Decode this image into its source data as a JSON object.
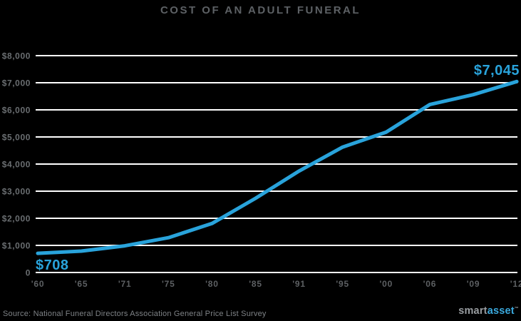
{
  "title": "COST OF AN ADULT FUNERAL",
  "source": "Source: National Funeral Directors Association General Price List Survey",
  "logo": {
    "smart": "smart",
    "asset": "asset",
    "tm": "™"
  },
  "colors": {
    "background": "#000000",
    "line": "#29a3db",
    "gridline": "#ffffff",
    "title_text": "#5d6165",
    "y_tick_text": "#6a6e71",
    "x_tick_text": "#5d6063",
    "source_text": "#7e8286",
    "logo_gray": "#999da1",
    "logo_blue": "#3aa9de"
  },
  "chart_data": {
    "type": "line",
    "title": "COST OF AN ADULT FUNERAL",
    "categories": [
      "'60",
      "'65",
      "'71",
      "'75",
      "'80",
      "'85",
      "'91",
      "'95",
      "'00",
      "'06",
      "'09",
      "'12"
    ],
    "values": [
      708,
      790,
      983,
      1285,
      1809,
      2737,
      3742,
      4626,
      5180,
      6195,
      6560,
      7045
    ],
    "xlabel": "",
    "ylabel": "",
    "ylim": [
      0,
      8000
    ],
    "ytick_interval": 1000,
    "ytick_labels": [
      "0",
      "$1,000",
      "$2,000",
      "$3,000",
      "$4,000",
      "$5,000",
      "$6,000",
      "$7,000",
      "$8,000"
    ],
    "grid": true,
    "legend": false,
    "annotations": [
      {
        "category": "'60",
        "value": 708,
        "label": "$708"
      },
      {
        "category": "'12",
        "value": 7045,
        "label": "$7,045"
      }
    ]
  }
}
